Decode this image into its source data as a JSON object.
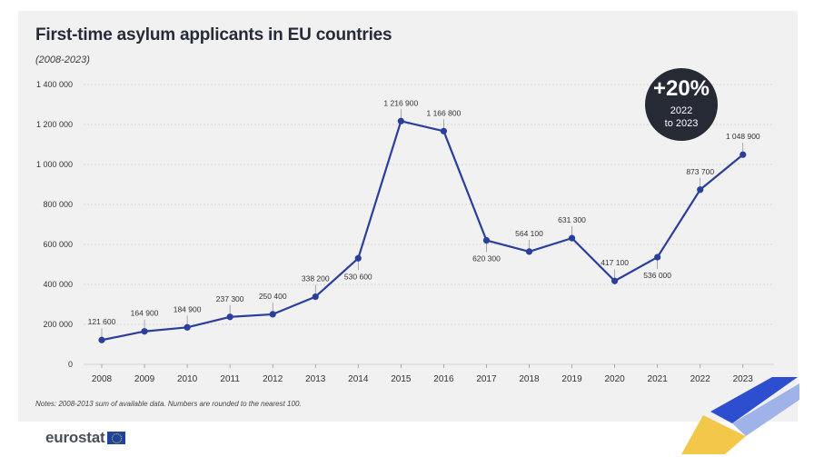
{
  "title": "First-time asylum applicants in EU countries",
  "subtitle": "(2008-2023)",
  "notes": "Notes: 2008-2013 sum of available data. Numbers are rounded to the nearest 100.",
  "badge": {
    "value": "+20%",
    "line1": "2022",
    "line2": "to 2023",
    "color": "#262a34"
  },
  "logo": {
    "text": "eurostat",
    "flag_color": "#1d44a0"
  },
  "colors": {
    "line": "#2a3f9b",
    "grid": "#c9c9c9",
    "background": "#f1f1f1",
    "corner_blue": "#2d4fcf",
    "corner_yellow": "#f3c84a"
  },
  "chart_data": {
    "type": "line",
    "categories": [
      "2008",
      "2009",
      "2010",
      "2011",
      "2012",
      "2013",
      "2014",
      "2015",
      "2016",
      "2017",
      "2018",
      "2019",
      "2020",
      "2021",
      "2022",
      "2023"
    ],
    "values": [
      121600,
      164900,
      184900,
      237300,
      250400,
      338200,
      530600,
      1216900,
      1166800,
      620300,
      564100,
      631300,
      417100,
      536000,
      873700,
      1048900
    ],
    "data_labels": [
      "121 600",
      "164 900",
      "184 900",
      "237 300",
      "250 400",
      "338 200",
      "530 600",
      "1 216 900",
      "1 166 800",
      "620 300",
      "564 100",
      "631 300",
      "417 100",
      "536 000",
      "873 700",
      "1 048 900"
    ],
    "label_positions": [
      "above",
      "above",
      "above",
      "above",
      "above",
      "above",
      "below",
      "above",
      "above",
      "below",
      "above",
      "above",
      "above",
      "below",
      "above",
      "above"
    ],
    "yticks": [
      0,
      200000,
      400000,
      600000,
      800000,
      1000000,
      1200000,
      1400000
    ],
    "ytick_labels": [
      "0",
      "200 000",
      "400 000",
      "600 000",
      "800 000",
      "1 000 000",
      "1 200 000",
      "1 400 000"
    ],
    "ylim": [
      0,
      1400000
    ],
    "grid": true,
    "xlabel": "",
    "ylabel": ""
  }
}
